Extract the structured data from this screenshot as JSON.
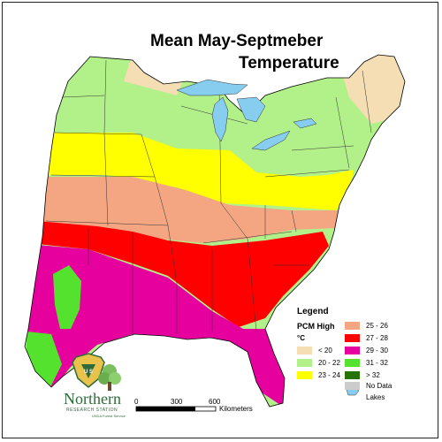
{
  "title_line1": "Mean May-Septmeber",
  "title_line2": "Temperature",
  "legend": {
    "title": "Legend",
    "model": "PCM High",
    "unit": "°C",
    "items": [
      {
        "label": "< 20",
        "color": "#f5deb3"
      },
      {
        "label": "20 - 22",
        "color": "#b2f08a"
      },
      {
        "label": "23 - 24",
        "color": "#ffff00"
      },
      {
        "label": "25 - 26",
        "color": "#f4a582"
      },
      {
        "label": "27 - 28",
        "color": "#ff0000"
      },
      {
        "label": "29 - 30",
        "color": "#e6009e"
      },
      {
        "label": "31 - 32",
        "color": "#55e22e"
      },
      {
        "label": "> 32",
        "color": "#267300"
      },
      {
        "label": "No Data",
        "color": "#cccccc"
      },
      {
        "label": "Lakes",
        "color": "#87cdf0"
      }
    ]
  },
  "scalebar": {
    "ticks": [
      "0",
      "300",
      "600"
    ],
    "unit": "Kilometers"
  },
  "logo": {
    "name": "Northern",
    "subtitle": "RESEARCH STATION",
    "agency": "USDA Forest Service",
    "shield_text": "U S"
  },
  "colors": {
    "lt20": "#f5deb3",
    "c20": "#b2f08a",
    "c23": "#ffff00",
    "c25": "#f4a582",
    "c27": "#ff0000",
    "c29": "#e6009e",
    "c31": "#55e22e",
    "c32": "#267300",
    "lakes": "#87cdf0"
  }
}
